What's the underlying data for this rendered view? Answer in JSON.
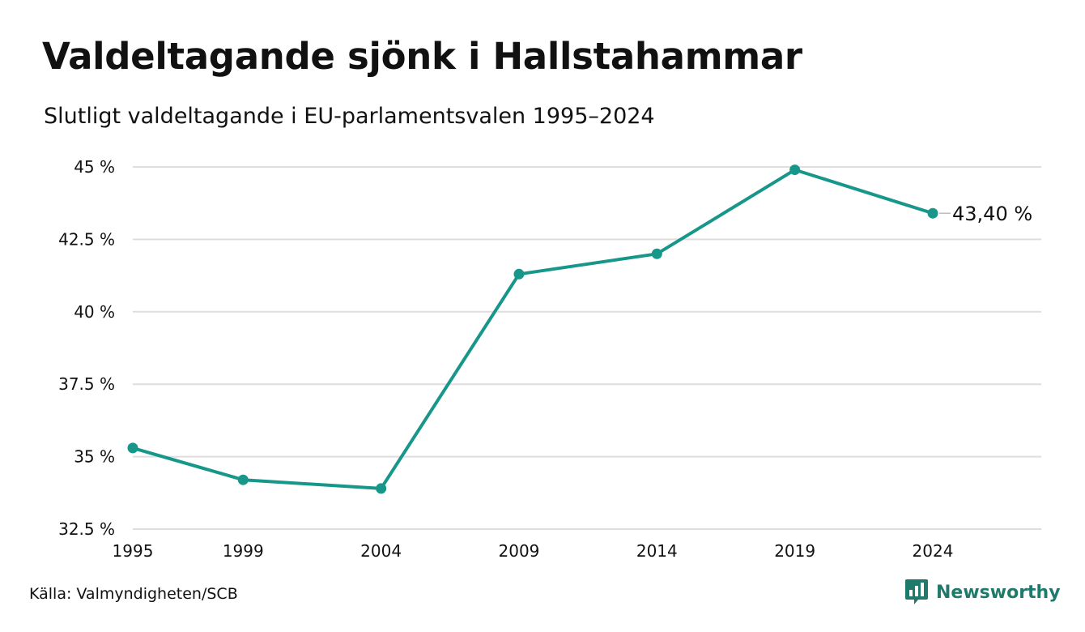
{
  "header": {
    "title": "Valdeltagande sjönk i Hallstahammar",
    "subtitle": "Slutligt valdeltagande i EU-parlamentsvalen 1995–2024"
  },
  "footer": {
    "source": "Källa: Valmyndigheten/SCB",
    "brand": "Newsworthy"
  },
  "colors": {
    "line": "#17968a",
    "grid": "#dedede",
    "brand": "#1f7a6c"
  },
  "chart_data": {
    "type": "line",
    "title": "Valdeltagande sjönk i Hallstahammar",
    "subtitle": "Slutligt valdeltagande i EU-parlamentsvalen 1995–2024",
    "xlabel": "",
    "ylabel": "",
    "categories": [
      "1995",
      "1999",
      "2004",
      "2009",
      "2014",
      "2019",
      "2024"
    ],
    "x": [
      1995,
      1999,
      2004,
      2009,
      2014,
      2019,
      2024
    ],
    "values": [
      35.3,
      34.2,
      33.9,
      41.3,
      42.0,
      44.9,
      43.4
    ],
    "ylim": [
      32.5,
      45
    ],
    "yticks": [
      32.5,
      35,
      37.5,
      40,
      42.5,
      45
    ],
    "ytick_labels": [
      "32.5 %",
      "35 %",
      "37.5 %",
      "40 %",
      "42.5 %",
      "45 %"
    ],
    "xticks": [
      1995,
      1999,
      2004,
      2009,
      2014,
      2019,
      2024
    ],
    "xtick_labels": [
      "1995",
      "1999",
      "2004",
      "2009",
      "2014",
      "2019",
      "2024"
    ],
    "end_label": "43,40 %",
    "grid": true,
    "legend": "none"
  }
}
